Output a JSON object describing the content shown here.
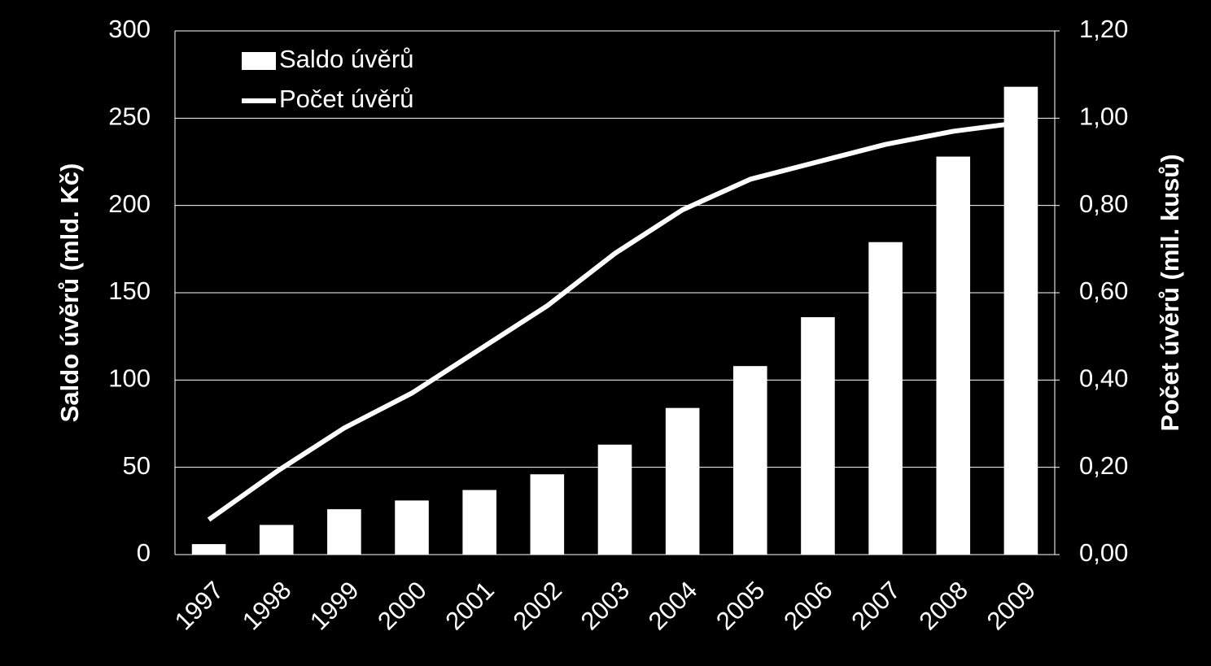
{
  "chart_data": {
    "type": "bar_line",
    "categories": [
      "1997",
      "1998",
      "1999",
      "2000",
      "2001",
      "2002",
      "2003",
      "2004",
      "2005",
      "2006",
      "2007",
      "2008",
      "2009"
    ],
    "series": [
      {
        "name": "Saldo úvěrů",
        "type": "bar",
        "color": "#ffffff",
        "values": [
          6,
          17,
          26,
          31,
          37,
          46,
          63,
          84,
          108,
          136,
          179,
          228,
          268
        ]
      },
      {
        "name": "Počet úvěrů",
        "type": "line",
        "axis": "y2",
        "color": "#ffffff",
        "values": [
          0.08,
          0.19,
          0.29,
          0.37,
          0.47,
          0.57,
          0.69,
          0.79,
          0.86,
          0.9,
          0.94,
          0.97,
          0.99
        ]
      }
    ],
    "ylabel": "Saldo úvěrů (mld. Kč)",
    "y2label": "Počet úvěrů (mil. kusů)",
    "ylim": [
      0,
      300
    ],
    "yticks": [
      0,
      50,
      100,
      150,
      200,
      250,
      300
    ],
    "y2lim": [
      0,
      1.2
    ],
    "y2ticks": [
      {
        "value": 0,
        "label": "0,00"
      },
      {
        "value": 0.2,
        "label": "0,20"
      },
      {
        "value": 0.4,
        "label": "0,40"
      },
      {
        "value": 0.6,
        "label": "0,60"
      },
      {
        "value": 0.8,
        "label": "0,80"
      },
      {
        "value": 1.0,
        "label": "1,00"
      },
      {
        "value": 1.2,
        "label": "1,20"
      }
    ],
    "grid": true,
    "legend": "top-left"
  }
}
